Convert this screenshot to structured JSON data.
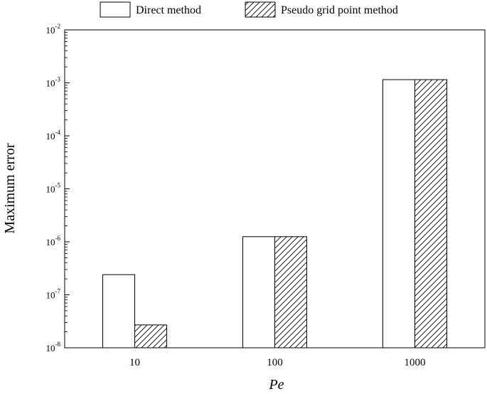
{
  "chart_data": {
    "type": "bar",
    "xlabel": "Pe",
    "ylabel": "Maximum error",
    "yscale": "log",
    "ylim": [
      1e-08,
      0.01
    ],
    "grid": false,
    "legend_position": "top",
    "categories": [
      "10",
      "100",
      "1000"
    ],
    "series": [
      {
        "name": "Direct method",
        "values": [
          2.4e-07,
          1.25e-06,
          0.00115
        ],
        "pattern": "none"
      },
      {
        "name": "Pseudo grid point method",
        "values": [
          2.7e-08,
          1.25e-06,
          0.00115
        ],
        "pattern": "hatch"
      }
    ],
    "y_ticks": [
      {
        "value": 1e-08,
        "base": "10",
        "exp": "-8"
      },
      {
        "value": 1e-07,
        "base": "10",
        "exp": "-7"
      },
      {
        "value": 1e-06,
        "base": "10",
        "exp": "-6"
      },
      {
        "value": 1e-05,
        "base": "10",
        "exp": "-5"
      },
      {
        "value": 0.0001,
        "base": "10",
        "exp": "-4"
      },
      {
        "value": 0.001,
        "base": "10",
        "exp": "-3"
      },
      {
        "value": 0.01,
        "base": "10",
        "exp": "-2"
      }
    ],
    "colors": {
      "bar_fill": "#ffffff",
      "stroke": "#000000"
    }
  }
}
